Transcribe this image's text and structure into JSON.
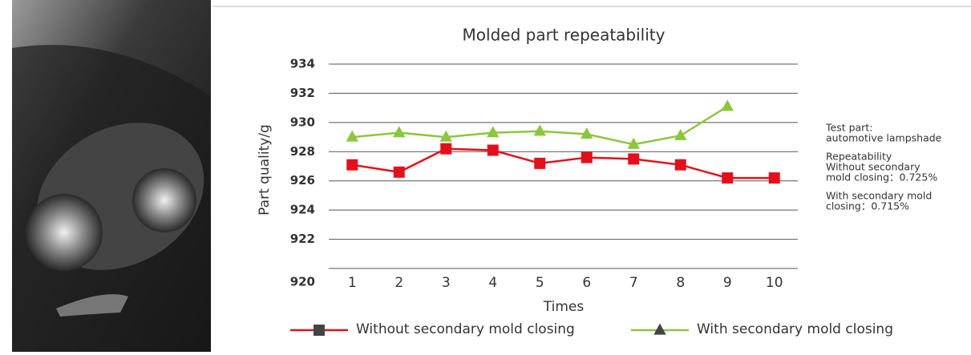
{
  "chart_data": {
    "type": "line",
    "title": "Molded part repeatability",
    "x_label": "Times",
    "y_label": "Part quality/g",
    "categories": [
      "1",
      "2",
      "3",
      "4",
      "5",
      "6",
      "7",
      "8",
      "9",
      "10"
    ],
    "series": [
      {
        "name": "Without secondary mold closing",
        "color": "#e3101b",
        "marker": "square",
        "values": [
          927.1,
          926.6,
          928.2,
          928.1,
          927.2,
          927.6,
          927.5,
          927.1,
          926.2,
          926.2
        ]
      },
      {
        "name": "With secondary mold closing",
        "color": "#8cc63e",
        "marker": "triangle",
        "values": [
          929.0,
          929.3,
          929.0,
          929.3,
          929.4,
          929.2,
          928.5,
          929.1,
          931.1,
          null
        ]
      }
    ],
    "ylim": [
      920,
      934
    ],
    "yticks": [
      920,
      922,
      924,
      926,
      928,
      930,
      932,
      934
    ],
    "grid": true,
    "notes": [
      [
        "Test part:",
        "automotive lampshade"
      ],
      [
        "Repeatability",
        "Without secondary",
        "mold closing：0.725%"
      ],
      [
        "With secondary mold",
        "closing：0.715%"
      ]
    ]
  }
}
